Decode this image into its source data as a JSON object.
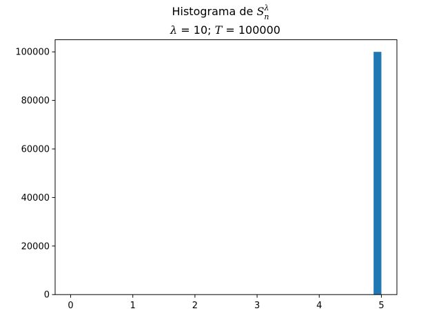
{
  "figure": {
    "title_line1": "Histograma de ",
    "title_line1_symbol": "S",
    "title_line1_superscript": "λ",
    "title_line1_subscript": "n",
    "title_line2_lambda_symbol": "λ",
    "title_line2_lambda_eq": " = ",
    "title_line2_lambda_value": "10",
    "title_line2_sep": "; ",
    "title_line2_T_symbol": "T",
    "title_line2_T_eq": " = ",
    "title_line2_T_value": "100000"
  },
  "colors": {
    "bar": "#1f77b4",
    "axis": "#000000",
    "background": "#ffffff"
  },
  "chart_data": {
    "type": "bar",
    "title": "Histograma de S_n^λ — λ = 10; T = 100000",
    "xlim": [
      -0.25,
      5.25
    ],
    "ylim": [
      0,
      105000
    ],
    "x_ticks": [
      0,
      1,
      2,
      3,
      4,
      5
    ],
    "y_ticks": [
      0,
      20000,
      40000,
      60000,
      80000,
      100000
    ],
    "x_tick_labels": [
      "0",
      "1",
      "2",
      "3",
      "4",
      "5"
    ],
    "y_tick_labels": [
      "0",
      "20000",
      "40000",
      "60000",
      "80000",
      "100000"
    ],
    "bars": [
      {
        "x_start": 4.875,
        "x_end": 5.0,
        "value": 100000
      }
    ],
    "xlabel": "",
    "ylabel": "",
    "grid": false
  }
}
